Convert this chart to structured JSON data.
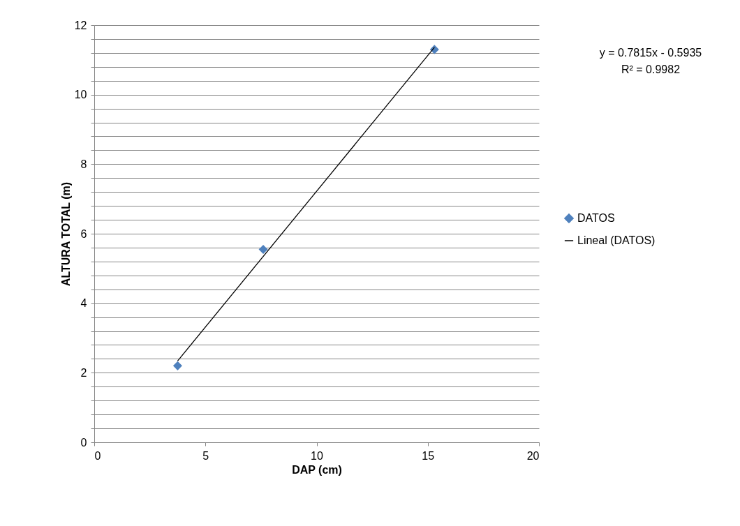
{
  "chart_data": {
    "type": "scatter",
    "xlabel": "DAP (cm)",
    "ylabel": "ALTURA TOTAL (m)",
    "series": [
      {
        "name": "DATOS",
        "color": "#4f81bd",
        "marker": "diamond",
        "x": [
          3.75,
          7.6,
          15.3
        ],
        "values": [
          2.2,
          5.55,
          11.3
        ]
      },
      {
        "name": "Lineal (DATOS)",
        "type": "line",
        "color": "#000000",
        "x": [
          3.75,
          15.3
        ],
        "values": [
          2.34,
          11.36
        ]
      }
    ],
    "xlim": [
      0,
      20
    ],
    "xticks": [
      0,
      5,
      10,
      15,
      20
    ],
    "ylim": [
      0,
      12
    ],
    "yticks": [
      0,
      {
        "value": 0.4,
        "label": null
      },
      {
        "value": 0.8,
        "label": null
      },
      {
        "value": 1.2,
        "label": null
      },
      {
        "value": 1.6,
        "label": null
      },
      2,
      {
        "value": 2.4,
        "label": null
      },
      {
        "value": 2.8,
        "label": null
      },
      {
        "value": 3.2,
        "label": null
      },
      {
        "value": 3.6,
        "label": null
      },
      4,
      {
        "value": 4.4,
        "label": null
      },
      {
        "value": 4.8,
        "label": null
      },
      {
        "value": 5.2,
        "label": null
      },
      {
        "value": 5.6,
        "label": null
      },
      6,
      {
        "value": 6.4,
        "label": null
      },
      {
        "value": 6.8,
        "label": null
      },
      {
        "value": 7.2,
        "label": null
      },
      {
        "value": 7.6,
        "label": null
      },
      8,
      {
        "value": 8.4,
        "label": null
      },
      {
        "value": 8.8,
        "label": null
      },
      {
        "value": 9.2,
        "label": null
      },
      {
        "value": 9.6,
        "label": null
      },
      10,
      {
        "value": 10.4,
        "label": null
      },
      {
        "value": 10.8,
        "label": null
      },
      {
        "value": 11.2,
        "label": null
      },
      {
        "value": 11.6,
        "label": null
      },
      12
    ],
    "grid": "y",
    "legend": "right",
    "annotations": [
      "y = 0.7815x - 0.5935",
      "R² = 0.9982"
    ]
  }
}
